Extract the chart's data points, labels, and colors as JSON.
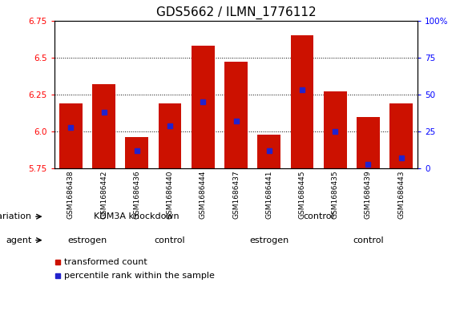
{
  "title": "GDS5662 / ILMN_1776112",
  "samples": [
    "GSM1686438",
    "GSM1686442",
    "GSM1686436",
    "GSM1686440",
    "GSM1686444",
    "GSM1686437",
    "GSM1686441",
    "GSM1686445",
    "GSM1686435",
    "GSM1686439",
    "GSM1686443"
  ],
  "bar_values": [
    6.19,
    6.32,
    5.96,
    6.19,
    6.58,
    6.47,
    5.98,
    6.65,
    6.27,
    6.1,
    6.19
  ],
  "blue_values": [
    6.03,
    6.13,
    5.87,
    6.04,
    6.2,
    6.07,
    5.87,
    6.28,
    6.0,
    5.78,
    5.82
  ],
  "ymin": 5.75,
  "ymax": 6.75,
  "yticks": [
    5.75,
    6.0,
    6.25,
    6.5,
    6.75
  ],
  "bar_color": "#cc1100",
  "blue_color": "#2222cc",
  "genotype_groups": [
    {
      "label": "KDM3A knockdown",
      "start": 0,
      "end": 4,
      "color": "#88ee88"
    },
    {
      "label": "control",
      "start": 5,
      "end": 10,
      "color": "#44dd44"
    }
  ],
  "agent_groups": [
    {
      "label": "estrogen",
      "start": 0,
      "end": 1,
      "color": "#ddaadd"
    },
    {
      "label": "control",
      "start": 2,
      "end": 4,
      "color": "#cc44cc"
    },
    {
      "label": "estrogen",
      "start": 5,
      "end": 7,
      "color": "#ddaadd"
    },
    {
      "label": "control",
      "start": 8,
      "end": 10,
      "color": "#cc44cc"
    }
  ],
  "legend_items": [
    {
      "label": "transformed count",
      "color": "#cc1100"
    },
    {
      "label": "percentile rank within the sample",
      "color": "#2222cc"
    }
  ],
  "title_fontsize": 11,
  "tick_fontsize": 7.5,
  "sample_fontsize": 6.5,
  "row_label_fontsize": 8,
  "legend_fontsize": 8
}
